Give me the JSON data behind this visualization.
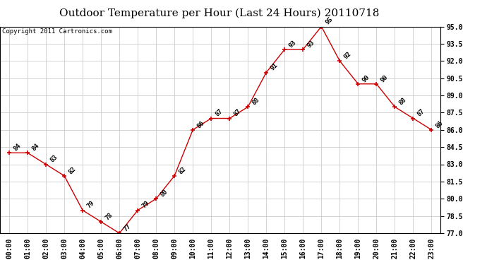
{
  "title": "Outdoor Temperature per Hour (Last 24 Hours) 20110718",
  "copyright": "Copyright 2011 Cartronics.com",
  "hours": [
    "00:00",
    "01:00",
    "02:00",
    "03:00",
    "04:00",
    "05:00",
    "06:00",
    "07:00",
    "08:00",
    "09:00",
    "10:00",
    "11:00",
    "12:00",
    "13:00",
    "14:00",
    "15:00",
    "16:00",
    "17:00",
    "18:00",
    "19:00",
    "20:00",
    "21:00",
    "22:00",
    "23:00"
  ],
  "temps": [
    84,
    84,
    83,
    82,
    79,
    78,
    77,
    79,
    80,
    82,
    86,
    87,
    87,
    88,
    91,
    93,
    93,
    95,
    92,
    90,
    90,
    88,
    87,
    86
  ],
  "line_color": "#cc0000",
  "marker": "+",
  "grid_color": "#cccccc",
  "bg_color": "#ffffff",
  "ylim_min": 77.0,
  "ylim_max": 95.0,
  "yticks": [
    77.0,
    78.5,
    80.0,
    81.5,
    83.0,
    84.5,
    86.0,
    87.5,
    89.0,
    90.5,
    92.0,
    93.5,
    95.0
  ],
  "title_fontsize": 11,
  "copyright_fontsize": 6.5,
  "label_fontsize": 6.5,
  "tick_fontsize": 7
}
